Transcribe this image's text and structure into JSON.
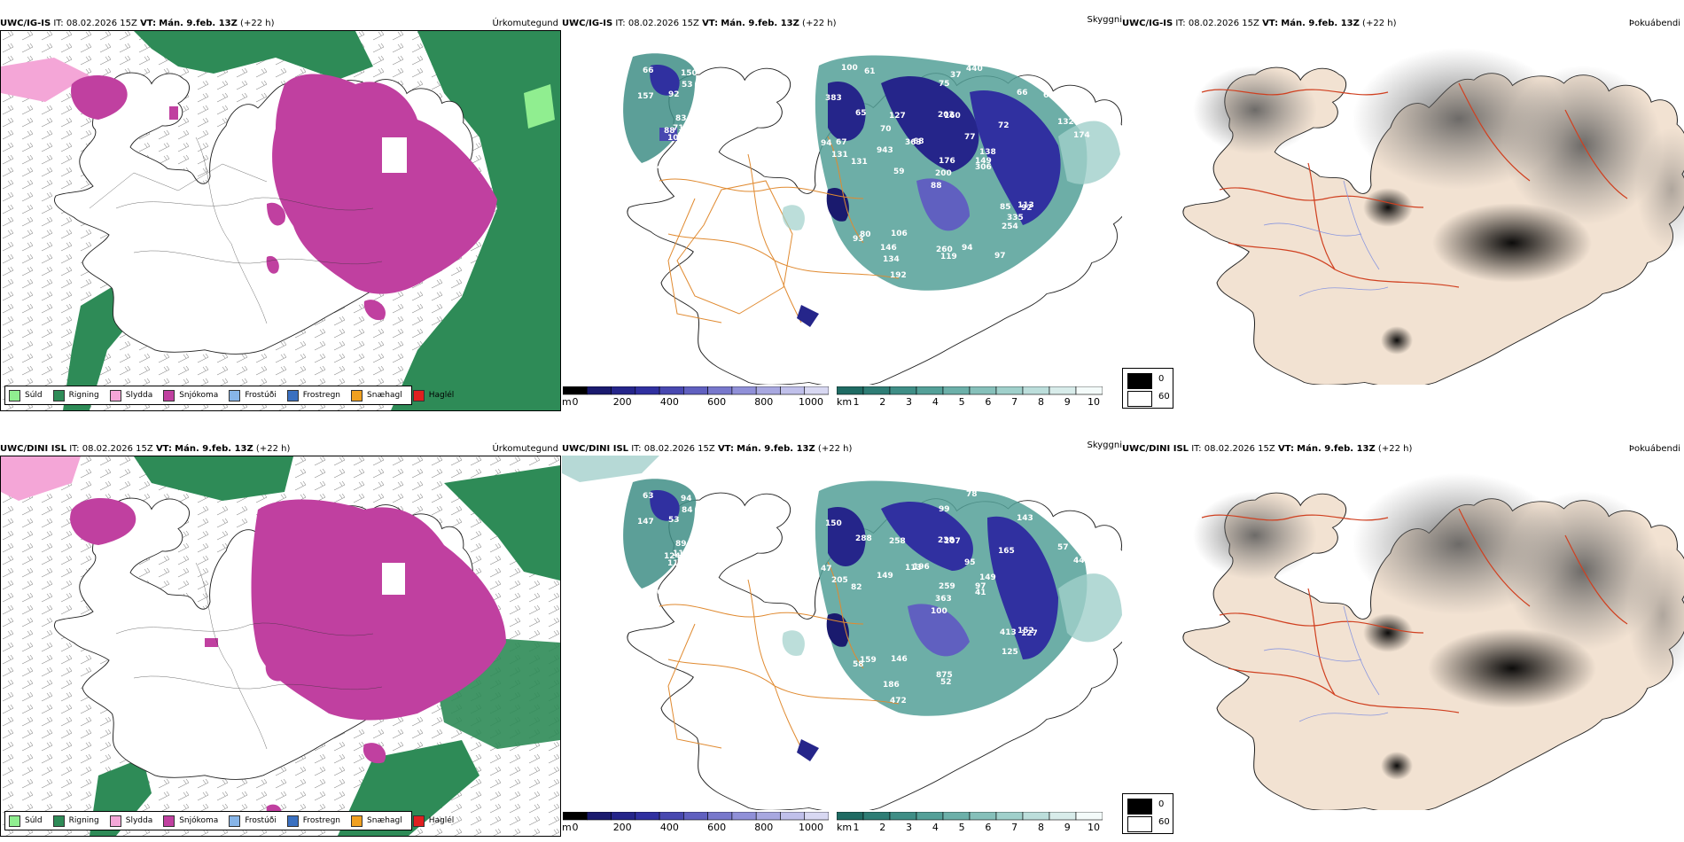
{
  "rows": [
    {
      "model": "UWC/IG-IS",
      "it_label": "IT:",
      "it_value": "08.02.2026 15Z",
      "vt_label": "VT:",
      "vt_value": "Mán. 9.feb. 13Z",
      "lead": "(+22 h)",
      "panel_types": [
        "Úrkomutegund",
        "Skyggni",
        "Þokuábendi"
      ],
      "ceiling_numbers": [
        "105",
        "157",
        "88",
        "55",
        "83",
        "94",
        "150",
        "92",
        "53",
        "71",
        "66",
        "89",
        "131",
        "64",
        "88",
        "72",
        "84",
        "202",
        "77",
        "80",
        "68",
        "152",
        "134",
        "160",
        "138",
        "92",
        "65",
        "75",
        "131",
        "85",
        "174",
        "200",
        "260",
        "176",
        "127",
        "66",
        "106",
        "123",
        "214",
        "113",
        "440",
        "363",
        "943",
        "254",
        "192",
        "94",
        "149",
        "157",
        "119",
        "306",
        "93",
        "132",
        "383",
        "335",
        "97",
        "146",
        "61",
        "100",
        "94",
        "69",
        "37",
        "59",
        "67",
        "70"
      ]
    },
    {
      "model": "UWC/DINI ISL",
      "it_label": "IT:",
      "it_value": "08.02.2026 15Z",
      "vt_label": "VT:",
      "vt_value": "Mán. 9.feb. 13Z",
      "lead": "(+22 h)",
      "panel_types": [
        "Úrkomutegund",
        "Skyggni",
        "Þokuábendi"
      ],
      "ceiling_numbers": [
        "112",
        "147",
        "124",
        "83",
        "89",
        "164",
        "94",
        "53",
        "84",
        "115",
        "63",
        "94",
        "82",
        "78",
        "100",
        "165",
        "171",
        "238",
        "95",
        "159",
        "196",
        "256",
        "186",
        "207",
        "149",
        "127",
        "288",
        "99",
        "205",
        "413",
        "442",
        "363",
        "875",
        "259",
        "258",
        "143",
        "146",
        "151",
        "186",
        "152",
        "78",
        "113",
        "149",
        "125",
        "472",
        "47",
        "97",
        "72",
        "52",
        "41",
        "58",
        "57",
        "150"
      ]
    }
  ],
  "precip_legend": [
    "Súld",
    "Rigning",
    "Slydda",
    "Snjókoma",
    "Frostúði",
    "Frostregn",
    "Snæhagl",
    "Haglél"
  ],
  "precip_colors": {
    "Súld": "#90ee90",
    "Rigning": "#2e8b57",
    "Slydda": "#f4a6d7",
    "Snjókoma": "#c040a0",
    "Frostúði": "#87b5e8",
    "Frostregn": "#3a70c0",
    "Snæhagl": "#f0a020",
    "Haglél": "#e02020"
  },
  "ceiling_bar": {
    "unit": "m",
    "ticks": [
      "0",
      "200",
      "400",
      "600",
      "800",
      "1000"
    ],
    "colors": [
      "#000000",
      "#1a1a6e",
      "#25258a",
      "#3030a0",
      "#4848b0",
      "#6060c0",
      "#7878cc",
      "#9090d8",
      "#a8a8e0",
      "#c0c0ea",
      "#d8d8f2"
    ]
  },
  "visibility_bar": {
    "unit": "km",
    "ticks": [
      "1",
      "2",
      "3",
      "4",
      "5",
      "6",
      "7",
      "8",
      "9",
      "10"
    ],
    "colors": [
      "#1f6b63",
      "#2e7d75",
      "#3f8e86",
      "#54a098",
      "#6cb0a9",
      "#86c0ba",
      "#a0d0cb",
      "#bcdedb",
      "#d8ecea",
      "#f4fbfa"
    ]
  },
  "fog_legend": [
    "0",
    "60"
  ],
  "fog_colors": [
    "#000000",
    "#ffffff"
  ]
}
